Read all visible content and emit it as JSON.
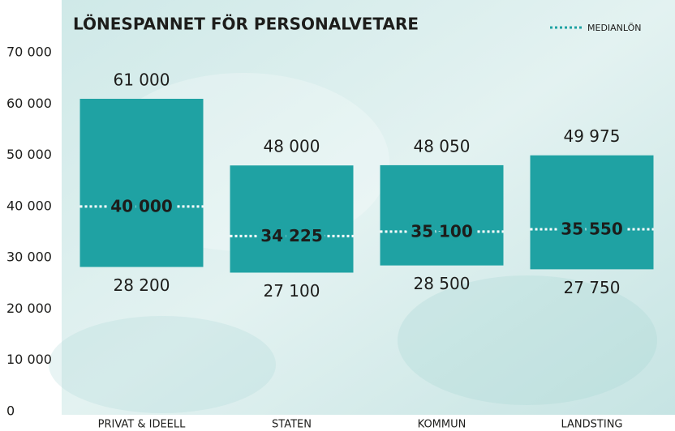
{
  "chart_data": {
    "type": "range_bar",
    "title": "LÖNESPANNET FÖR PERSONALVETARE",
    "categories": [
      "PRIVAT & IDEELL",
      "STATEN",
      "KOMMUN",
      "LANDSTING"
    ],
    "ranges": {
      "color": "#1fa2a3",
      "low": {
        "values": [
          28200,
          27100,
          28500,
          27750
        ],
        "value_labels": [
          "28 200",
          "27 100",
          "28 500",
          "27 750"
        ]
      },
      "high": {
        "values": [
          61000,
          48000,
          48050,
          49975
        ],
        "value_labels": [
          "61 000",
          "48 000",
          "48 050",
          "49 975"
        ]
      }
    },
    "series": [
      {
        "name": "MEDIANLÖN",
        "color": "#ffffff",
        "values": [
          40000,
          34225,
          35100,
          35550
        ],
        "value_labels": [
          "40 000",
          "34 225",
          "35 100",
          "35 550"
        ]
      }
    ],
    "ylim": [
      0,
      70000
    ],
    "yticks": [
      {
        "value": 0,
        "label": "0"
      },
      {
        "value": 10000,
        "label": "10 000"
      },
      {
        "value": 20000,
        "label": "20 000"
      },
      {
        "value": 30000,
        "label": "30 000"
      },
      {
        "value": 40000,
        "label": "40 000"
      },
      {
        "value": 50000,
        "label": "50 000"
      },
      {
        "value": 60000,
        "label": "60 000"
      },
      {
        "value": 70000,
        "label": "70 000"
      }
    ],
    "grid": false,
    "legend": "top-right"
  }
}
